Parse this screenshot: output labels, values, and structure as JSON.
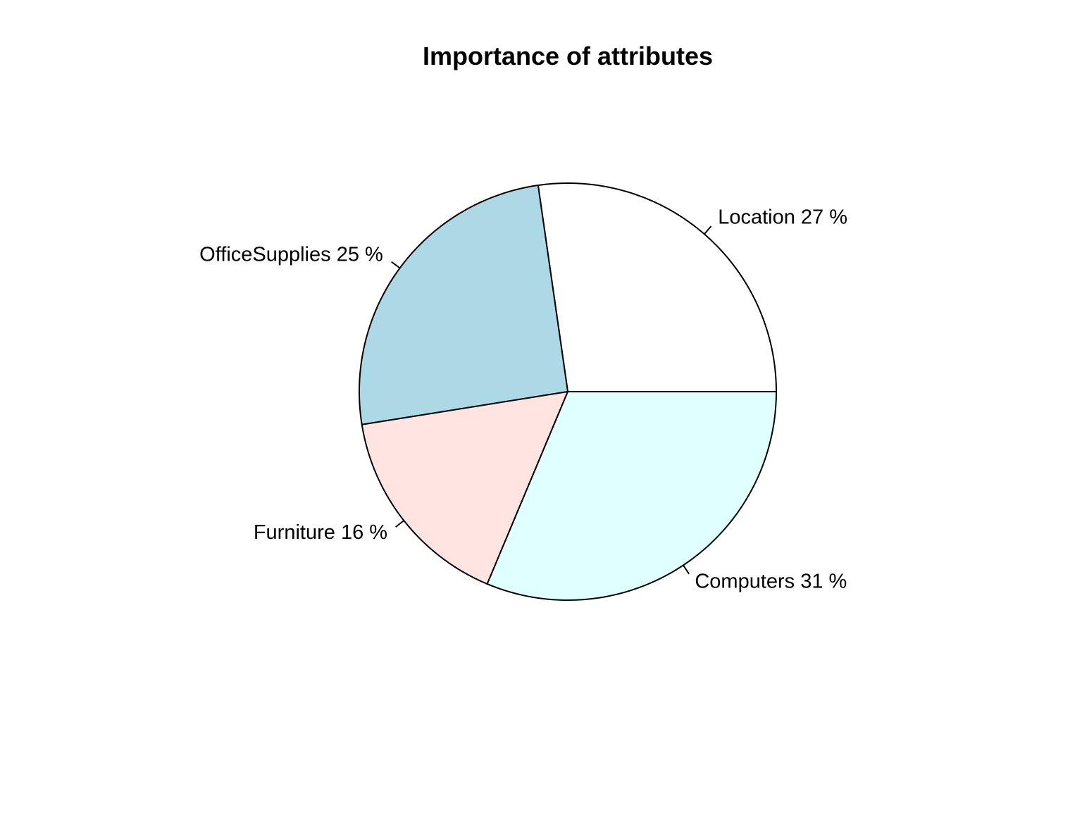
{
  "chart_data": {
    "type": "pie",
    "title": "Importance of attributes",
    "slices": [
      {
        "name": "Location",
        "value": 27,
        "label": "Location 27 %",
        "color": "#FFFFFF"
      },
      {
        "name": "OfficeSupplies",
        "value": 25,
        "label": "OfficeSupplies 25 %",
        "color": "#ADD8E6"
      },
      {
        "name": "Furniture",
        "value": 16,
        "label": "Furniture 16 %",
        "color": "#FFE4E1"
      },
      {
        "name": "Computers",
        "value": 31,
        "label": "Computers 31 %",
        "color": "#E0FFFF"
      }
    ],
    "start_angle_deg": 0,
    "direction": "counterclockwise",
    "border_color": "#000000"
  }
}
